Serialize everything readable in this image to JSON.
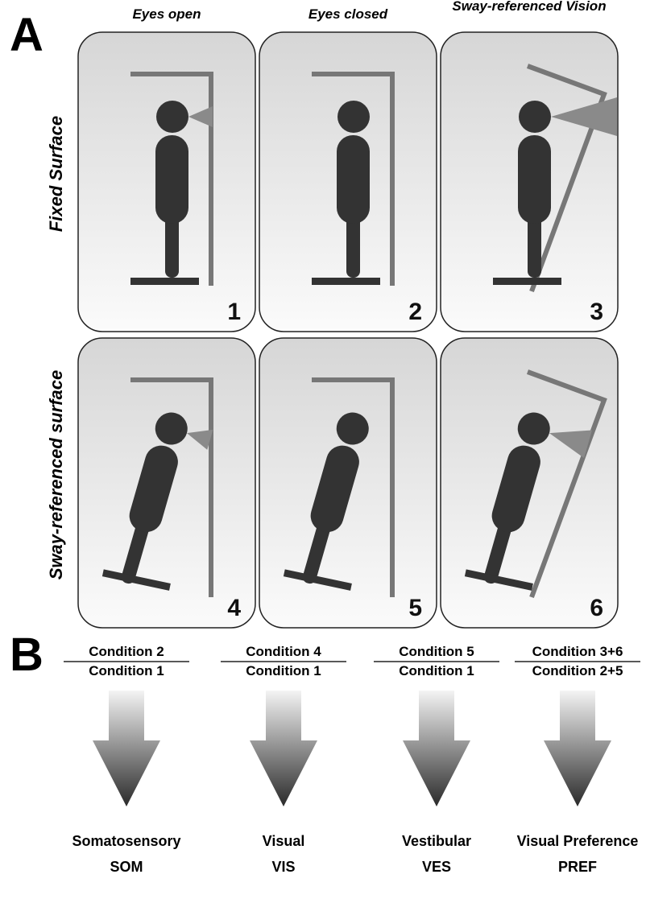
{
  "panel_a": {
    "label": "A",
    "columns": [
      "Eyes open",
      "Eyes closed",
      "Sway-referenced Vision"
    ],
    "rows": [
      "Fixed Surface",
      "Sway-referenced surface"
    ],
    "cells": [
      "1",
      "2",
      "3",
      "4",
      "5",
      "6"
    ]
  },
  "panel_b": {
    "label": "B",
    "ratios": [
      {
        "numerator": "Condition 2",
        "denominator": "Condition 1",
        "measure": "Somatosensory",
        "abbreviation": "SOM"
      },
      {
        "numerator": "Condition 4",
        "denominator": "Condition 1",
        "measure": "Visual",
        "abbreviation": "VIS"
      },
      {
        "numerator": "Condition 5",
        "denominator": "Condition 1",
        "measure": "Vestibular",
        "abbreviation": "VES"
      },
      {
        "numerator": "Condition 3+6",
        "denominator": "Condition 2+5",
        "measure": "Visual Preference",
        "abbreviation": "PREF"
      }
    ]
  }
}
